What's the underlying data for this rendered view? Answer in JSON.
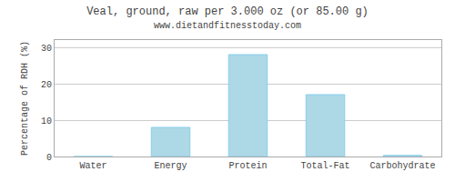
{
  "chart_data": {
    "type": "bar",
    "title": "Veal, ground, raw per 3.000 oz (or 85.00 g)",
    "subtitle": "www.dietandfitnesstoday.com",
    "categories": [
      "Water",
      "Energy",
      "Protein",
      "Total-Fat",
      "Carbohydrate"
    ],
    "values": [
      0.0,
      8.0,
      28.0,
      17.0,
      0.3
    ],
    "color": "#ADD8E6",
    "ylabel": "Percentage of RDH (%)",
    "ylim": [
      0,
      32
    ],
    "yticks": [
      0,
      10,
      20,
      30
    ],
    "grid": true
  }
}
